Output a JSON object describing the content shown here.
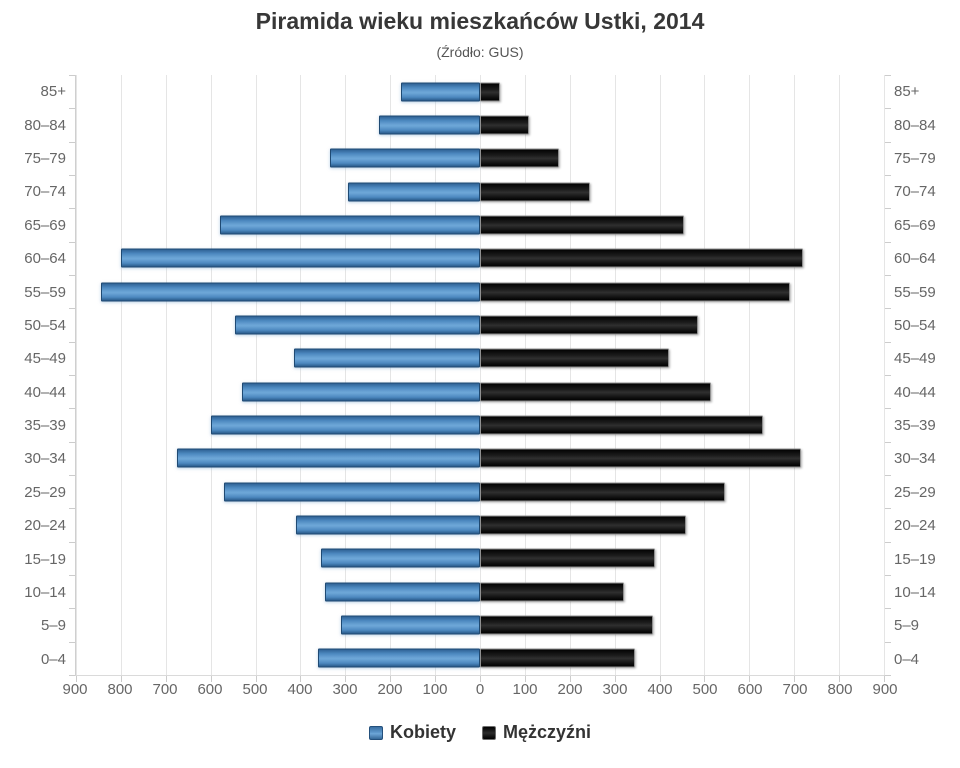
{
  "title": "Piramida wieku mieszkańców Ustki, 2014",
  "subtitle": "(Źródło: GUS)",
  "colors": {
    "kobiety": "#4d89c0",
    "mezczyzni": "#111111",
    "grid": "#e5e5e5",
    "axis_text": "#666666",
    "title_text": "#373737"
  },
  "chart_data": {
    "type": "bar",
    "variant": "population-pyramid",
    "title": "Piramida wieku mieszkańców Ustki, 2014",
    "subtitle": "(Źródło: GUS)",
    "categories": [
      "85+",
      "80–84",
      "75–79",
      "70–74",
      "65–69",
      "60–64",
      "55–59",
      "50–54",
      "45–49",
      "40–44",
      "35–39",
      "30–34",
      "25–29",
      "20–24",
      "15–19",
      "10–14",
      "5–9",
      "0–4"
    ],
    "series": [
      {
        "name": "Kobiety",
        "side": "left",
        "color": "#4d89c0",
        "values": [
          175,
          225,
          335,
          295,
          580,
          800,
          845,
          545,
          415,
          530,
          600,
          675,
          570,
          410,
          355,
          345,
          310,
          360
        ]
      },
      {
        "name": "Mężczyźni",
        "side": "right",
        "color": "#111111",
        "values": [
          45,
          110,
          175,
          245,
          455,
          720,
          690,
          485,
          420,
          515,
          630,
          715,
          545,
          460,
          390,
          320,
          385,
          345
        ]
      }
    ],
    "xlim_each_side": [
      0,
      900
    ],
    "x_ticks": [
      "900",
      "800",
      "700",
      "600",
      "500",
      "400",
      "300",
      "200",
      "100",
      "0",
      "100",
      "200",
      "300",
      "400",
      "500",
      "600",
      "700",
      "800",
      "900"
    ],
    "grid": true,
    "legend_position": "bottom"
  }
}
